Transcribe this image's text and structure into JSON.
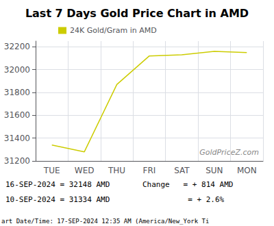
{
  "chart_data": {
    "type": "line",
    "title": "Last 7 Days Gold Price Chart in AMD",
    "categories": [
      "TUE",
      "WED",
      "THU",
      "FRI",
      "SAT",
      "SUN",
      "MON"
    ],
    "series": [
      {
        "name": "24K Gold/Gram in AMD",
        "color": "#cccc00",
        "values": [
          31340,
          31280,
          31870,
          32120,
          32130,
          32160,
          32150
        ]
      }
    ],
    "ylim": [
      31200,
      32250
    ],
    "yticks": [
      31200,
      31400,
      31600,
      31800,
      32000,
      32200
    ],
    "grid": true,
    "legend": "upper left",
    "annotations": [
      "GoldPriceZ.com",
      "16-SEP-2024 = 32148 AMD",
      "10-SEP-2024 = 31334 AMD",
      "Change   = + 814 AMD",
      "          = + 2.6%",
      "art Date/Time: 17-SEP-2024 12:35 AM (America/New_York Ti"
    ]
  }
}
